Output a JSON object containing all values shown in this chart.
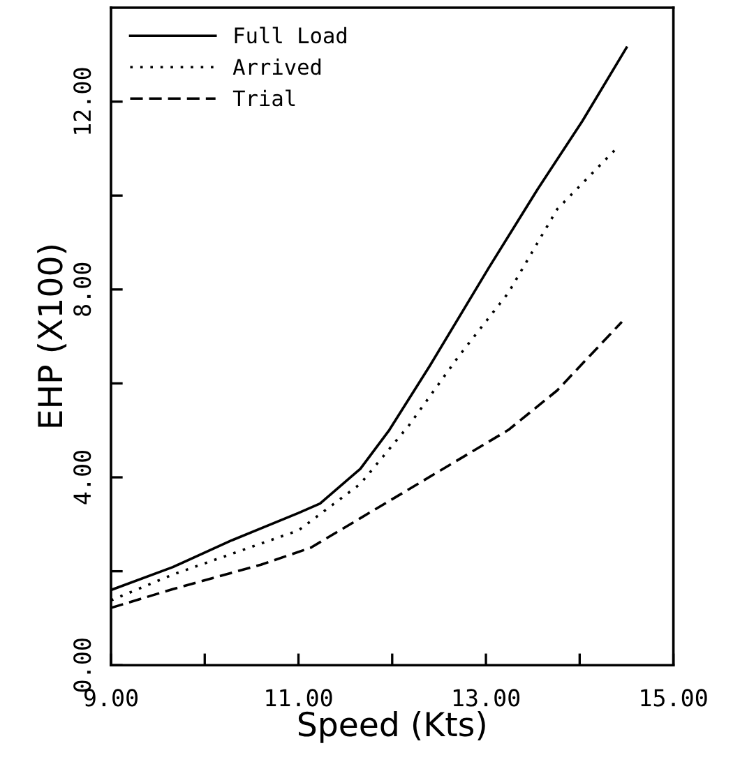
{
  "chart_data": {
    "type": "line",
    "xlabel": "Speed (Kts)",
    "ylabel": "EHP (X100)",
    "xlim": [
      9,
      15
    ],
    "ylim": [
      0,
      14
    ],
    "xticks": [
      {
        "value": 9,
        "label": "9.00"
      },
      {
        "value": 10,
        "label": null
      },
      {
        "value": 11,
        "label": "11.00"
      },
      {
        "value": 12,
        "label": null
      },
      {
        "value": 13,
        "label": "13.00"
      },
      {
        "value": 14,
        "label": null
      },
      {
        "value": 15,
        "label": "15.00"
      }
    ],
    "yticks": [
      {
        "value": 0,
        "label": "0.00"
      },
      {
        "value": 2,
        "label": null
      },
      {
        "value": 4,
        "label": "4.00"
      },
      {
        "value": 6,
        "label": null
      },
      {
        "value": 8,
        "label": "8.00"
      },
      {
        "value": 10,
        "label": null
      },
      {
        "value": 12,
        "label": "12.00"
      }
    ],
    "grid": false,
    "legend": "top left",
    "series": [
      {
        "name": "Full Load",
        "color": "#000000",
        "line_style": "solid",
        "x": [
          9.0,
          9.66,
          10.29,
          11.0,
          11.23,
          11.66,
          11.97,
          12.4,
          13.03,
          13.55,
          14.03,
          14.5
        ],
        "values": [
          1.6,
          2.09,
          2.66,
          3.24,
          3.44,
          4.18,
          5.01,
          6.37,
          8.46,
          10.13,
          11.59,
          13.15
        ]
      },
      {
        "name": "Arrived",
        "color": "#000000",
        "line_style": "dotted",
        "x": [
          9.0,
          9.66,
          11.0,
          11.66,
          12.18,
          12.71,
          13.24,
          13.76,
          14.42
        ],
        "values": [
          1.38,
          1.93,
          2.87,
          3.86,
          5.11,
          6.58,
          7.93,
          9.71,
          11.06
        ]
      },
      {
        "name": "Trial",
        "color": "#000000",
        "line_style": "dashed",
        "x": [
          9.0,
          9.66,
          10.6,
          11.13,
          11.66,
          12.45,
          13.24,
          13.76,
          14.45
        ],
        "values": [
          1.22,
          1.62,
          2.14,
          2.5,
          3.13,
          4.07,
          5.01,
          5.85,
          7.31
        ]
      }
    ]
  }
}
